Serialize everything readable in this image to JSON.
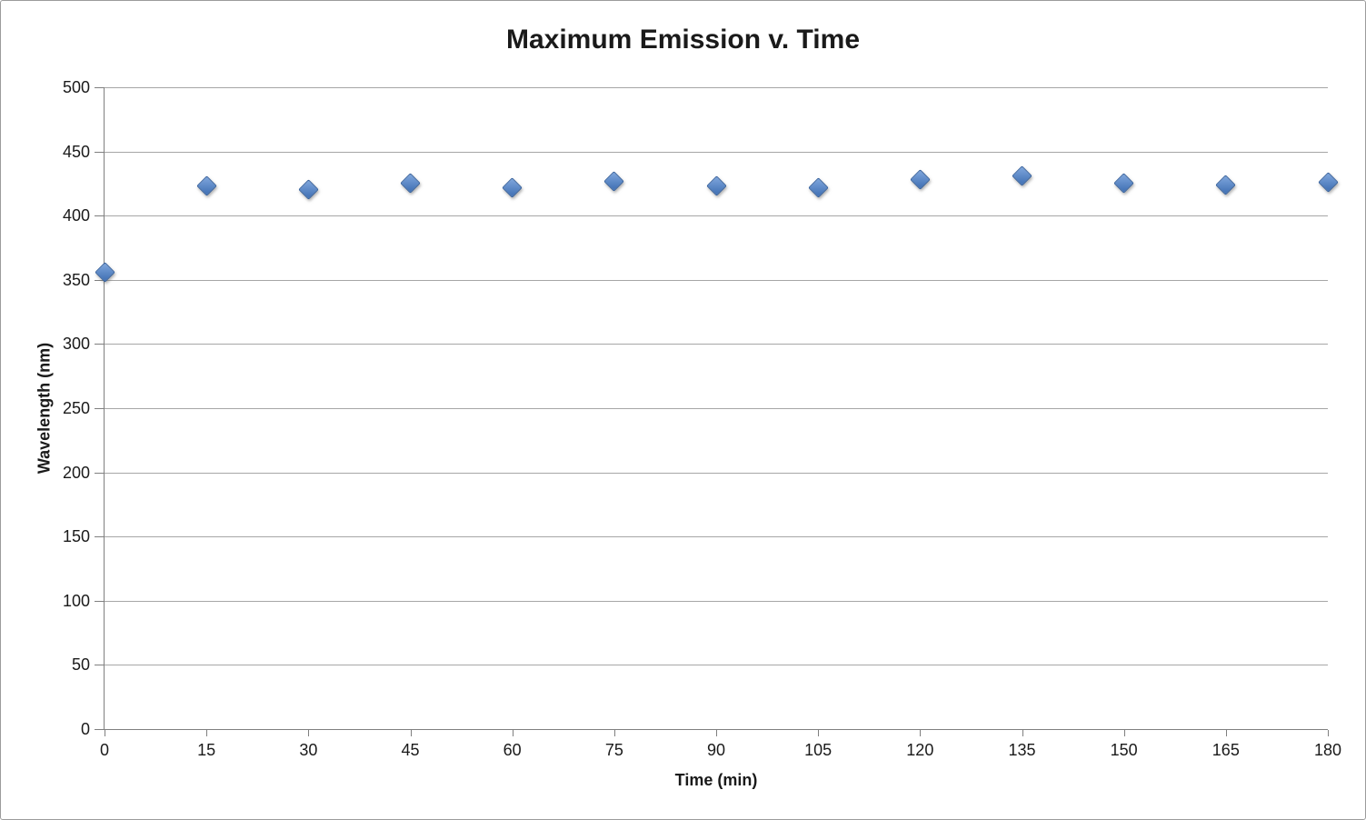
{
  "frame": {
    "border_color": "#9b9b9b",
    "background": "#ffffff"
  },
  "chart_data": {
    "type": "scatter",
    "title": "Maximum Emission v. Time",
    "xlabel": "Time (min)",
    "ylabel": "Wavelength (nm)",
    "x": [
      0,
      15,
      30,
      45,
      60,
      75,
      90,
      105,
      120,
      135,
      150,
      165,
      180
    ],
    "y": [
      356,
      423,
      420,
      425,
      422,
      427,
      423,
      422,
      428,
      431,
      425,
      424,
      426
    ],
    "series_name": "Maximum Emission",
    "xlim": [
      0,
      180
    ],
    "ylim": [
      0,
      500
    ],
    "x_ticks": [
      0,
      15,
      30,
      45,
      60,
      75,
      90,
      105,
      120,
      135,
      150,
      165,
      180
    ],
    "y_ticks": [
      0,
      50,
      100,
      150,
      200,
      250,
      300,
      350,
      400,
      450,
      500
    ],
    "grid": "horizontal",
    "legend": "none",
    "marker": {
      "shape": "diamond",
      "fill": "#4877b9",
      "fill_light": "#7fa6dc",
      "border": "#38639f"
    },
    "colors": {
      "gridline": "#a6a6a6",
      "axis": "#7f7f7f",
      "text": "#1a1a1a",
      "background": "#ffffff"
    }
  }
}
